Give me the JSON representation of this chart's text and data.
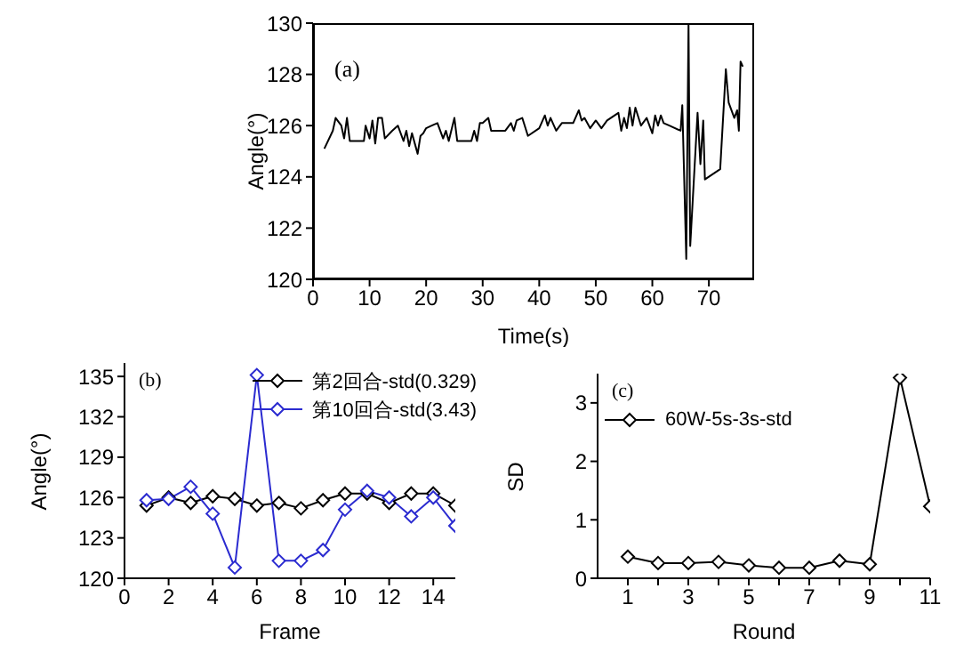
{
  "chart_data": [
    {
      "type": "line",
      "xlabel": "Time(s)",
      "ylabel": "Angle(°)",
      "annotations": [
        "(a)"
      ],
      "marker": "none",
      "legend": false,
      "xlim": [
        0,
        78
      ],
      "xticks": [
        0,
        10,
        20,
        30,
        40,
        50,
        60,
        70
      ],
      "ylim": [
        120,
        130
      ],
      "yticks": [
        120,
        122,
        124,
        126,
        128,
        130
      ],
      "x": [
        2,
        3.5,
        4,
        5,
        5.5,
        6,
        6.5,
        9,
        9.3,
        10,
        10.5,
        11,
        11.5,
        12.2,
        12.7,
        14,
        15,
        16,
        16.5,
        17,
        17.5,
        18,
        18.5,
        19,
        19.5,
        20,
        21,
        22,
        23,
        23.5,
        24,
        25,
        25.5,
        28,
        28.5,
        29,
        29.5,
        30,
        31,
        31.5,
        34,
        35,
        35.5,
        36,
        37,
        38,
        40,
        41,
        41.5,
        42,
        43,
        44,
        46,
        47,
        47.5,
        48,
        49,
        50,
        51,
        52,
        54,
        54.5,
        55,
        55.5,
        56,
        56.5,
        57,
        58,
        59,
        60,
        60.5,
        61,
        61.5,
        62,
        63,
        65,
        65.3,
        66,
        66.4,
        66.7,
        68,
        68.5,
        69,
        69.3,
        72,
        73,
        73.5,
        74.5,
        75,
        75.3,
        75.6,
        76
      ],
      "series": [
        {
          "color": "#000000",
          "values": [
            125.1,
            125.8,
            126.3,
            126.0,
            125.5,
            126.3,
            125.4,
            125.4,
            126.0,
            125.5,
            126.2,
            125.3,
            126.3,
            126.3,
            125.5,
            125.8,
            126.0,
            125.4,
            125.8,
            125.2,
            125.7,
            125.3,
            124.9,
            125.6,
            125.7,
            125.9,
            126.0,
            126.1,
            125.5,
            125.8,
            125.4,
            126.3,
            125.4,
            125.4,
            125.8,
            125.4,
            126.1,
            126.1,
            126.3,
            125.8,
            125.8,
            126.1,
            125.8,
            126.2,
            126.3,
            125.6,
            125.9,
            126.4,
            126.0,
            126.3,
            125.8,
            126.1,
            126.1,
            126.6,
            126.2,
            126.3,
            125.9,
            126.2,
            125.9,
            126.2,
            126.5,
            125.8,
            126.3,
            125.9,
            126.7,
            126.0,
            126.7,
            126.0,
            126.3,
            125.7,
            126.4,
            126.0,
            126.4,
            126.1,
            126.0,
            125.8,
            126.8,
            120.8,
            130,
            121.3,
            126.5,
            124.5,
            126.2,
            123.9,
            124.3,
            128.2,
            126.9,
            126.3,
            126.6,
            125.8,
            128.5,
            128.3
          ]
        }
      ]
    },
    {
      "type": "line",
      "xlabel": "Frame",
      "ylabel": "Angle(°)",
      "annotations": [
        "(b)"
      ],
      "marker": "diamond",
      "legend": "top right",
      "xlim": [
        0,
        15
      ],
      "xticks": [
        0,
        2,
        4,
        6,
        8,
        10,
        12,
        14
      ],
      "ylim": [
        120,
        136
      ],
      "yticks": [
        120,
        123,
        126,
        129,
        132,
        135
      ],
      "x": [
        1,
        2,
        3,
        4,
        5,
        6,
        7,
        8,
        9,
        10,
        11,
        12,
        13,
        14,
        15
      ],
      "series": [
        {
          "name": "第2回合-std(0.329)",
          "color": "#000000",
          "values": [
            125.4,
            126.0,
            125.6,
            126.1,
            125.9,
            125.4,
            125.6,
            125.2,
            125.8,
            126.3,
            126.3,
            125.6,
            126.3,
            126.3,
            125.4
          ]
        },
        {
          "name": "第10回合-std(3.43)",
          "color": "#2b2bd0",
          "values": [
            125.8,
            125.9,
            126.8,
            124.8,
            120.8,
            135.1,
            121.3,
            121.3,
            122.1,
            125.1,
            126.5,
            126.0,
            124.6,
            126.0,
            123.9
          ]
        }
      ]
    },
    {
      "type": "line",
      "xlabel": "Round",
      "ylabel": "SD",
      "annotations": [
        "(c)"
      ],
      "marker": "diamond",
      "legend": "top left",
      "xlim": [
        0,
        11
      ],
      "xticks": [
        1,
        {
          "value": 2,
          "label": null
        },
        3,
        {
          "value": 4,
          "label": null
        },
        5,
        {
          "value": 6,
          "label": null
        },
        7,
        {
          "value": 8,
          "label": null
        },
        9,
        {
          "value": 10,
          "label": null
        },
        11
      ],
      "ylim": [
        0,
        3.5
      ],
      "yticks": [
        0,
        1,
        2,
        3
      ],
      "x": [
        1,
        2,
        3,
        4,
        5,
        6,
        7,
        8,
        9,
        10,
        11
      ],
      "series": [
        {
          "name": "60W-5s-3s-std",
          "color": "#000000",
          "values": [
            0.37,
            0.26,
            0.26,
            0.28,
            0.22,
            0.18,
            0.18,
            0.3,
            0.24,
            3.43,
            1.23
          ]
        }
      ]
    }
  ]
}
